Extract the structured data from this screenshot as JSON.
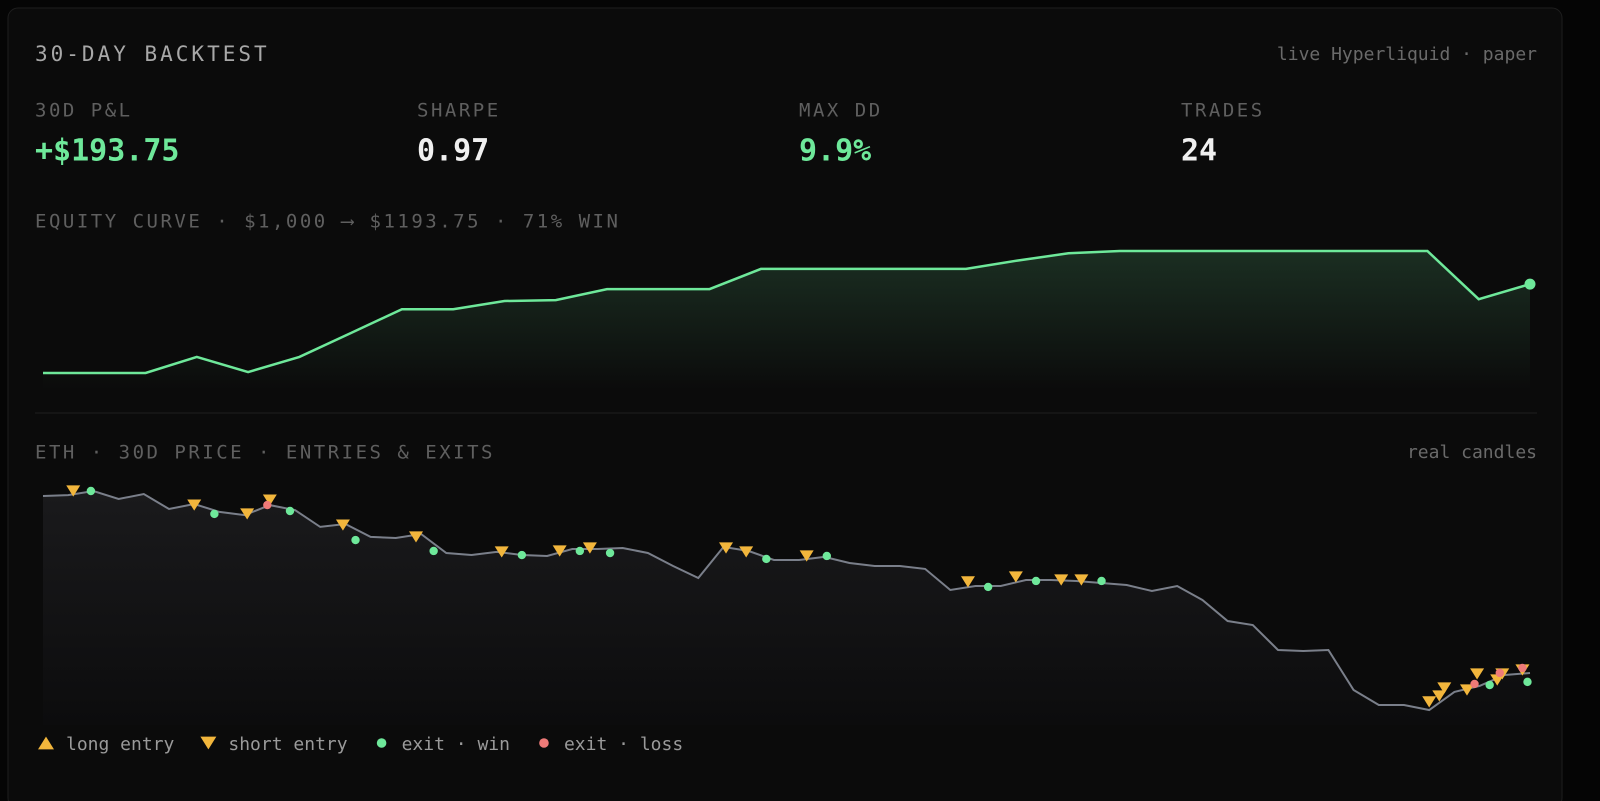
{
  "header": {
    "title": "30-DAY BACKTEST",
    "subtitle": "live Hyperliquid · paper"
  },
  "stats": [
    {
      "label": "30D P&L",
      "value": "+$193.75",
      "color": "#6ee89a"
    },
    {
      "label": "SHARPE",
      "value": "0.97",
      "color": "#f0f0f0"
    },
    {
      "label": "MAX DD",
      "value": "9.9%",
      "color": "#6ee89a"
    },
    {
      "label": "TRADES",
      "value": "24",
      "color": "#f0f0f0"
    }
  ],
  "chart_data": [
    {
      "type": "line",
      "title": "EQUITY CURVE · $1,000 ⟶ $1193.75 · 71% WIN",
      "color": "#6ee89a",
      "values": [
        1000,
        1000,
        1000,
        1035,
        1002,
        1035,
        1087,
        1139,
        1139,
        1157,
        1159,
        1183,
        1183,
        1183,
        1227,
        1227,
        1227,
        1227,
        1227,
        1245,
        1261,
        1266,
        1266,
        1266,
        1266,
        1266,
        1266,
        1266,
        1161,
        1193.75
      ]
    },
    {
      "type": "line",
      "title": "ETH · 30D PRICE · ENTRIES & EXITS",
      "subtitle": "real candles",
      "color": "#7a7f8a",
      "values": [
        4668,
        4674,
        4700,
        4649,
        4681,
        4585,
        4617,
        4566,
        4546,
        4610,
        4578,
        4470,
        4489,
        4406,
        4399,
        4425,
        4303,
        4290,
        4310,
        4290,
        4284,
        4329,
        4329,
        4335,
        4303,
        4220,
        4143,
        4342,
        4316,
        4258,
        4258,
        4278,
        4239,
        4220,
        4220,
        4201,
        4066,
        4092,
        4092,
        4130,
        4130,
        4124,
        4111,
        4098,
        4060,
        4092,
        4002,
        3868,
        3842,
        3682,
        3676,
        3682,
        3426,
        3330,
        3330,
        3298,
        3414,
        3452,
        3522,
        3535
      ],
      "markers": [
        {
          "name": "long entry",
          "shape": "up",
          "color": "#f2b63c",
          "x": [],
          "values": []
        },
        {
          "name": "short entry",
          "shape": "down",
          "color": "#f2b63c",
          "x": [
            1.2,
            6.0,
            8.1,
            9.0,
            11.9,
            14.8,
            18.2,
            20.5,
            21.7,
            27.1,
            27.9,
            30.3,
            36.7,
            38.6,
            40.4,
            41.2,
            55.0,
            55.4,
            55.6,
            56.5,
            56.9,
            57.7,
            57.9,
            58.7
          ],
          "values": [
            4700,
            4610,
            4553,
            4642,
            4482,
            4406,
            4310,
            4316,
            4335,
            4335,
            4310,
            4284,
            4118,
            4150,
            4130,
            4130,
            3350,
            3388,
            3439,
            3426,
            3529,
            3490,
            3529,
            3554
          ]
        },
        {
          "name": "exit · win",
          "shape": "dot",
          "color": "#6ee89a",
          "x": [
            1.9,
            6.8,
            9.8,
            12.4,
            15.5,
            19.0,
            21.3,
            22.5,
            28.7,
            31.1,
            37.5,
            39.4,
            42.0,
            57.4,
            58.9
          ],
          "values": [
            4700,
            4553,
            4572,
            4386,
            4316,
            4290,
            4316,
            4303,
            4265,
            4284,
            4086,
            4124,
            4124,
            3458,
            3478
          ]
        },
        {
          "name": "exit · loss",
          "shape": "dot",
          "color": "#ee7a78",
          "x": [
            8.9,
            56.8,
            57.8,
            58.7
          ],
          "values": [
            4610,
            3465,
            3535,
            3567
          ]
        }
      ]
    }
  ]
}
